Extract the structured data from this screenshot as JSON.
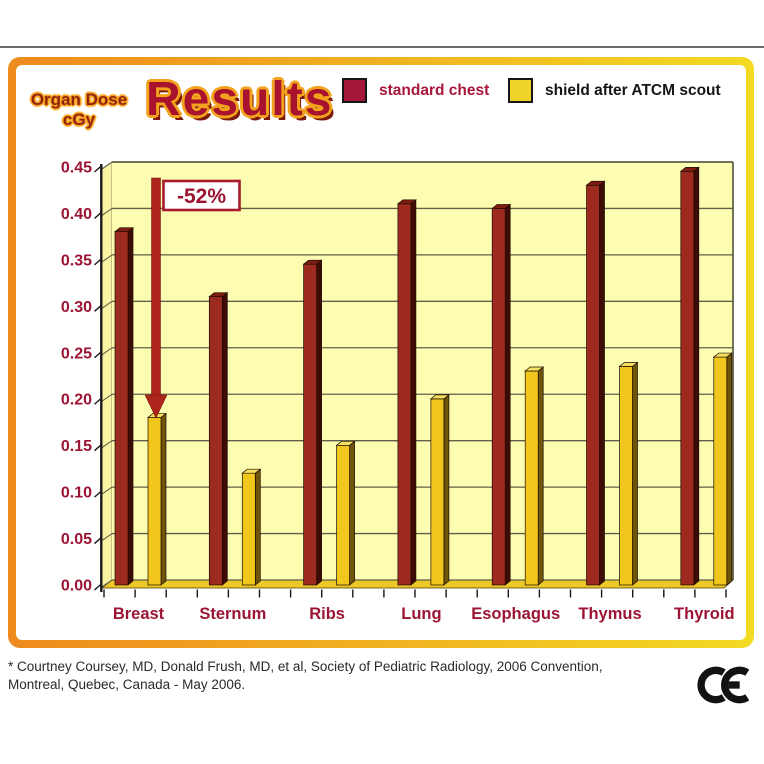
{
  "header": {
    "y_axis_title_line1": "Organ Dose",
    "y_axis_title_line2": "cGy",
    "title": "Results"
  },
  "legend": [
    {
      "label": "standard chest",
      "color": "#a5173a"
    },
    {
      "label": "shield after ATCM scout",
      "color": "#efd32b"
    }
  ],
  "chart_data": {
    "type": "bar",
    "title": "Results",
    "ylabel": "Organ Dose cGy",
    "categories": [
      "Breast",
      "Sternum",
      "Ribs",
      "Lung",
      "Esophagus",
      "Thymus",
      "Thyroid"
    ],
    "series": [
      {
        "name": "standard chest",
        "color": "#9d2a1f",
        "color_dark": "#3f0b05",
        "color_light": "#7c1c12",
        "values": [
          0.375,
          0.305,
          0.34,
          0.405,
          0.4,
          0.425,
          0.44
        ]
      },
      {
        "name": "shield after ATCM scout",
        "color": "#f1c71e",
        "color_dark": "#6e5509",
        "color_light": "#f6e061",
        "values": [
          0.175,
          0.115,
          0.145,
          0.195,
          0.225,
          0.23,
          0.24
        ]
      }
    ],
    "ylim": [
      0,
      0.45
    ],
    "ytick_step": 0.05,
    "ytick_labels": [
      "0.45",
      "0.40",
      "0.35",
      "0.30",
      "0.25",
      "0.20",
      "0.15",
      "0.10",
      "0.05",
      "0.00"
    ],
    "grid": true,
    "legend_position": "top-right",
    "annotation": {
      "text": "-52%",
      "target_category": "Breast",
      "target_series": "shield after ATCM scout"
    },
    "colors": {
      "plot_bg": "#fdfdb1",
      "wall": "#faf5a3",
      "floor": "#ecc927",
      "grid": "#60604a",
      "border": "#50503c",
      "axis": "#1a1a1a",
      "axis_label": "#9c1433",
      "arrow": "#ac241a",
      "annotation_border": "#a6192e",
      "annotation_text": "#9b1430"
    }
  },
  "footer": {
    "citation_line1": "* Courtney Coursey, MD, Donald Frush, MD, et al, Society of Pediatric Radiology, 2006 Convention,",
    "citation_line2": "Montreal, Quebec, Canada - May 2006.",
    "ce_mark": "CE"
  }
}
